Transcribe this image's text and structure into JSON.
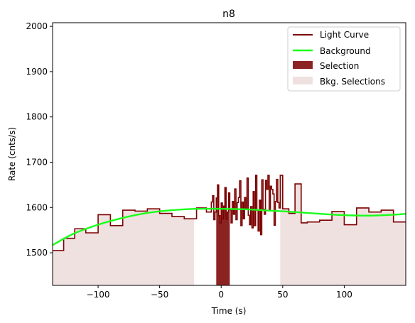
{
  "chart_data": {
    "type": "line",
    "title": "n8",
    "xlabel": "Time (s)",
    "ylabel": "Rate (cnts/s)",
    "xlim": [
      -137,
      150
    ],
    "ylim": [
      1428,
      2008
    ],
    "xticks": [
      -100,
      -50,
      0,
      50,
      100
    ],
    "xtick_labels": [
      "−100",
      "−50",
      "0",
      "50",
      "100"
    ],
    "yticks": [
      1500,
      1600,
      1700,
      1800,
      1900,
      2000
    ],
    "ytick_labels": [
      "1500",
      "1600",
      "1700",
      "1800",
      "1900",
      "2000"
    ],
    "grid": false,
    "legend_position": "top-right",
    "colors": {
      "light_curve": "#7b0000",
      "background": "#19ff19",
      "selection": "#8c2323",
      "bkg_selection": "#f0e1e1"
    },
    "series": [
      {
        "name": "Light Curve",
        "kind": "step",
        "x": [
          -137,
          -128,
          -119,
          -110,
          -100,
          -90,
          -80,
          -70,
          -60,
          -50,
          -40,
          -30,
          -20,
          -12,
          -8,
          -7,
          -6,
          -5,
          -4,
          -3,
          -2,
          -1,
          0,
          1,
          2,
          3,
          4,
          5,
          6,
          7,
          8,
          9,
          10,
          11,
          12,
          13,
          14,
          15,
          16,
          17,
          18,
          19,
          20,
          21,
          22,
          23,
          24,
          25,
          26,
          27,
          28,
          29,
          30,
          31,
          32,
          33,
          34,
          35,
          36,
          37,
          38,
          39,
          40,
          41,
          42,
          43,
          44,
          45,
          46,
          47,
          48,
          50,
          55,
          60,
          65,
          70,
          80,
          90,
          100,
          110,
          120,
          130,
          140,
          150
        ],
        "y": [
          1505,
          1532,
          1553,
          1544,
          1584,
          1560,
          1594,
          1592,
          1597,
          1587,
          1580,
          1575,
          1599,
          1590,
          1612,
          1626,
          1573,
          1590,
          1621,
          1650,
          1582,
          1566,
          1610,
          1575,
          1603,
          1644,
          1574,
          1590,
          1632,
          1595,
          1566,
          1613,
          1585,
          1641,
          1573,
          1611,
          1622,
          1659,
          1560,
          1612,
          1575,
          1622,
          1597,
          1665,
          1583,
          1562,
          1602,
          1555,
          1635,
          1560,
          1671,
          1594,
          1548,
          1616,
          1540,
          1661,
          1596,
          1585,
          1660,
          1640,
          1671,
          1595,
          1647,
          1640,
          1630,
          1561,
          1613,
          1662,
          1611,
          1599,
          1671,
          1597,
          1587,
          1652,
          1566,
          1568,
          1572,
          1591,
          1562,
          1599,
          1590,
          1594,
          1568,
          1568
        ]
      },
      {
        "name": "Background",
        "kind": "curve",
        "x": [
          -137,
          -120,
          -100,
          -80,
          -60,
          -40,
          -20,
          0,
          20,
          40,
          60,
          80,
          100,
          120,
          140,
          150
        ],
        "y": [
          1517,
          1542,
          1562,
          1577,
          1588,
          1594,
          1597,
          1597,
          1596,
          1593,
          1590,
          1586,
          1583,
          1582,
          1584,
          1586
        ]
      },
      {
        "name": "Selection",
        "kind": "span",
        "x": [
          -4,
          7
        ]
      },
      {
        "name": "Bkg. Selections",
        "kind": "spans",
        "ranges": [
          [
            -137,
            -22
          ],
          [
            48,
            150
          ]
        ]
      }
    ]
  }
}
